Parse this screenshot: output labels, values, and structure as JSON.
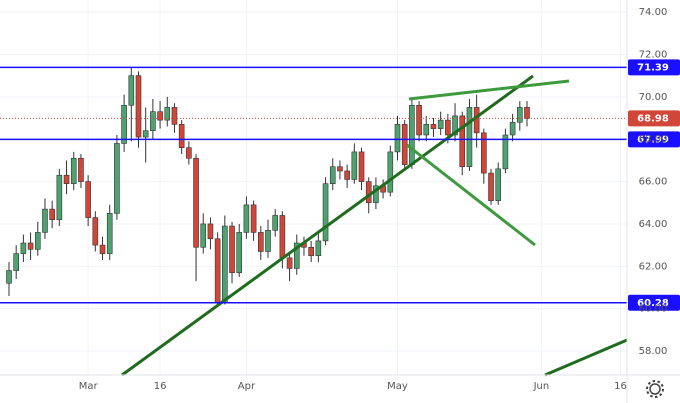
{
  "chart_data": {
    "type": "candlestick",
    "x": [
      null,
      null,
      null,
      null,
      null,
      null,
      null,
      null,
      null,
      null,
      null,
      null,
      null,
      null,
      null,
      null,
      null,
      null,
      null,
      null,
      null,
      null,
      null,
      null,
      null,
      null,
      null,
      null,
      null,
      null,
      null,
      null,
      null,
      null,
      null,
      null,
      null,
      null,
      null,
      null,
      null,
      null,
      null,
      null,
      null,
      null,
      null,
      null,
      null,
      null,
      null,
      null,
      null,
      null,
      null,
      null,
      null,
      null,
      null,
      null,
      null,
      null,
      null,
      null,
      null,
      null,
      null,
      null,
      null,
      null,
      null,
      null,
      null
    ],
    "open": [
      61.2,
      61.8,
      62.6,
      63.1,
      62.8,
      63.6,
      64.7,
      64.2,
      66.3,
      65.9,
      67.1,
      66.0,
      64.3,
      63.0,
      62.6,
      64.5,
      67.8,
      69.6,
      71.0,
      68.1,
      68.4,
      69.3,
      68.9,
      69.5,
      68.7,
      67.6,
      67.1,
      62.9,
      64.0,
      63.3,
      60.3,
      63.9,
      61.7,
      63.6,
      64.9,
      63.6,
      62.7,
      63.7,
      64.4,
      62.4,
      61.9,
      63.1,
      62.9,
      62.5,
      63.2,
      65.9,
      66.7,
      66.5,
      66.1,
      67.4,
      66.0,
      65.0,
      65.8,
      65.5,
      67.4,
      68.7,
      66.8,
      69.6,
      68.2,
      68.7,
      68.5,
      68.9,
      68.2,
      69.1,
      66.7,
      69.5,
      68.3,
      66.4,
      65.1,
      66.6,
      68.2,
      68.8,
      69.5
    ],
    "high": [
      62.2,
      63.0,
      63.5,
      63.6,
      64.1,
      65.2,
      65.1,
      66.6,
      67.0,
      67.4,
      67.3,
      66.3,
      64.6,
      63.4,
      64.9,
      68.2,
      70.1,
      71.4,
      71.2,
      69.5,
      69.9,
      69.8,
      70.0,
      69.7,
      68.9,
      67.9,
      67.3,
      64.5,
      64.3,
      63.6,
      64.4,
      64.1,
      64.0,
      65.3,
      65.1,
      63.9,
      64.2,
      64.7,
      64.6,
      62.7,
      63.5,
      63.4,
      63.2,
      63.6,
      66.2,
      67.1,
      67.0,
      66.8,
      67.8,
      67.6,
      66.2,
      66.2,
      66.1,
      67.7,
      69.1,
      68.9,
      69.9,
      69.8,
      69.1,
      69.0,
      69.3,
      69.2,
      69.7,
      69.3,
      69.9,
      70.1,
      68.5,
      66.6,
      66.9,
      68.5,
      69.2,
      69.8,
      69.8
    ],
    "low": [
      60.6,
      61.4,
      62.2,
      62.3,
      62.5,
      63.3,
      63.8,
      63.9,
      65.4,
      65.6,
      65.7,
      63.9,
      62.7,
      62.3,
      62.3,
      64.2,
      67.4,
      67.9,
      67.6,
      66.9,
      68.0,
      68.5,
      68.6,
      68.3,
      67.3,
      66.8,
      61.3,
      62.6,
      62.8,
      60.2,
      60.2,
      61.2,
      61.5,
      63.3,
      63.2,
      62.3,
      62.4,
      63.4,
      61.9,
      61.3,
      61.6,
      62.5,
      62.2,
      62.2,
      63.0,
      65.6,
      66.1,
      65.7,
      65.9,
      65.6,
      64.5,
      64.7,
      65.2,
      65.3,
      67.0,
      66.5,
      66.6,
      67.9,
      67.9,
      68.1,
      68.2,
      67.8,
      67.9,
      66.3,
      66.5,
      67.6,
      65.9,
      64.9,
      64.9,
      66.4,
      67.9,
      68.4,
      68.6
    ],
    "close": [
      61.8,
      62.6,
      63.1,
      62.8,
      63.6,
      64.7,
      64.2,
      66.3,
      65.9,
      67.1,
      66.0,
      64.3,
      63.0,
      62.6,
      64.5,
      67.8,
      69.6,
      71.0,
      68.1,
      68.4,
      69.3,
      68.9,
      69.5,
      68.7,
      67.6,
      67.1,
      62.9,
      64.0,
      63.3,
      60.3,
      63.9,
      61.7,
      63.6,
      64.9,
      63.6,
      62.7,
      63.7,
      64.4,
      62.4,
      61.9,
      63.1,
      62.9,
      62.5,
      63.2,
      65.9,
      66.7,
      66.5,
      66.1,
      67.4,
      66.0,
      65.0,
      65.8,
      65.5,
      67.4,
      68.7,
      66.8,
      69.6,
      68.2,
      68.7,
      68.5,
      68.9,
      68.2,
      69.1,
      66.7,
      69.5,
      68.3,
      66.4,
      65.1,
      66.6,
      68.2,
      68.8,
      69.5,
      68.98
    ],
    "up_color": "#4ea26f",
    "down_color": "#d0473a",
    "levels": [
      71.39,
      67.99,
      60.28
    ],
    "level_color": "#1a10ff",
    "ylim": [
      56.87,
      74.57
    ],
    "yticks": [
      {
        "value": 58,
        "label": "58.00"
      },
      {
        "value": 60,
        "label": "60.00"
      },
      {
        "value": 62,
        "label": "62.00"
      },
      {
        "value": 64,
        "label": "64.00"
      },
      {
        "value": 66,
        "label": "66.00"
      },
      {
        "value": 68,
        "label": "68.00"
      },
      {
        "value": 70,
        "label": "70.00"
      },
      {
        "value": 72,
        "label": "72.00"
      },
      {
        "value": 74,
        "label": "74.00"
      }
    ],
    "xlim": [
      -1.25,
      85.9
    ],
    "xticks": [
      {
        "value": 11,
        "label": "Mar"
      },
      {
        "value": 21,
        "label": "16"
      },
      {
        "value": 33,
        "label": "Apr"
      },
      {
        "value": 54,
        "label": "May"
      },
      {
        "value": 74,
        "label": "Jun"
      },
      {
        "value": 85,
        "label": "16"
      }
    ],
    "grid": true
  }
}
